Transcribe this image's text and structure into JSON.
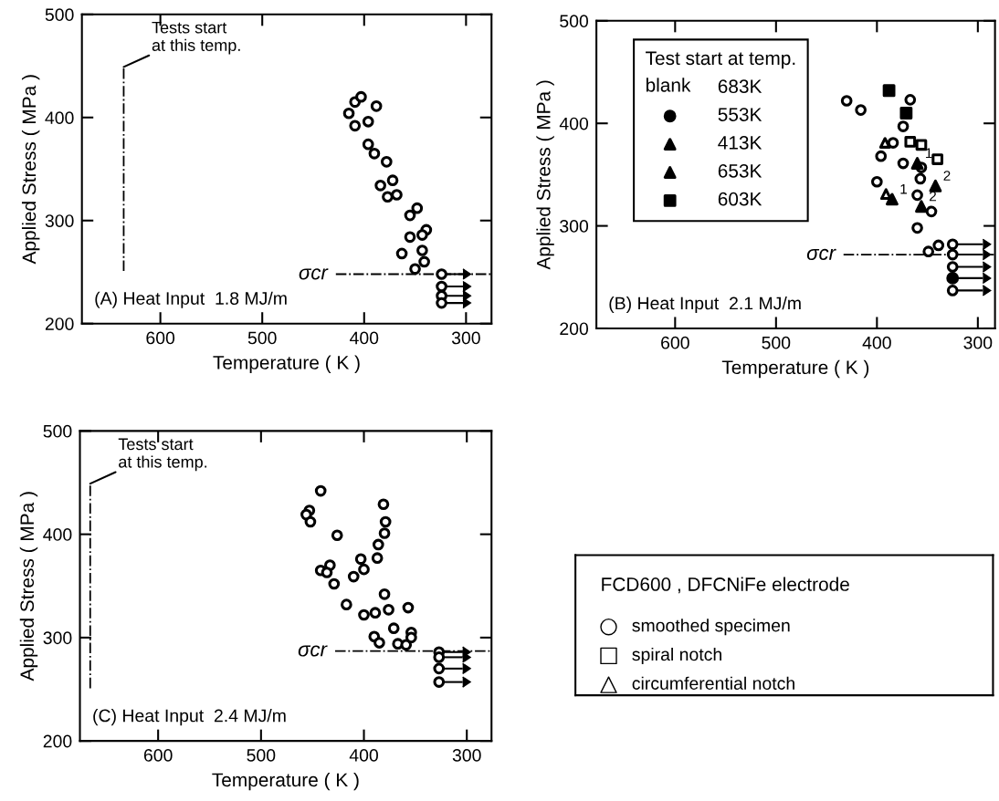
{
  "chart_data": [
    {
      "type": "scatter",
      "xlabel": "Temperature ( K )",
      "ylabel": "Applied Stress ( MPa )",
      "xlim": [
        677,
        275
      ],
      "xticks": [
        600,
        500,
        400,
        300
      ],
      "ylim": [
        200,
        500
      ],
      "yticks": [
        200,
        300,
        400,
        500
      ],
      "grid": false,
      "legend": false,
      "series": [
        {
          "color": "#000000",
          "marker": "circle-open",
          "x": [
            415,
            409,
            403,
            388,
            409,
            396,
            396,
            390,
            378,
            372,
            384,
            377,
            368,
            348,
            355,
            339,
            343,
            355,
            343,
            363,
            341,
            350,
            324,
            324,
            324,
            324
          ],
          "values": [
            404,
            415,
            420,
            411,
            392,
            396,
            374,
            365,
            357,
            339,
            334,
            323,
            325,
            312,
            305,
            291,
            286,
            284,
            271,
            268,
            260,
            253,
            248,
            236,
            227,
            220
          ],
          "xerrors": [
            null,
            null,
            null,
            null,
            null,
            null,
            null,
            null,
            null,
            null,
            null,
            null,
            null,
            null,
            null,
            null,
            null,
            null,
            null,
            null,
            null,
            null,
            [
              303,
              324
            ],
            [
              303,
              324
            ],
            [
              303,
              324
            ],
            [
              303,
              324
            ]
          ]
        }
      ],
      "ref_lines": [
        {
          "axis": "x",
          "value": 636,
          "line_style": "dashdot"
        },
        {
          "axis": "y",
          "value": 248,
          "label": "σcr",
          "line_style": "dashdot"
        }
      ],
      "annotations": [
        "(A) Heat Input  1.8 MJ/m",
        {
          "text": "Tests start\nat this temp.",
          "x": 636,
          "y": 449
        }
      ]
    },
    {
      "type": "scatter",
      "xlabel": "Temperature ( K )",
      "ylabel": "Applied Stress ( MPa )",
      "xlim": [
        678,
        283
      ],
      "xticks": [
        600,
        500,
        400,
        300
      ],
      "ylim": [
        200,
        500
      ],
      "yticks": [
        200,
        300,
        400,
        500
      ],
      "grid": false,
      "legend": "top left",
      "legend_title": "Test start at temp.",
      "series": [
        {
          "color": "#000000",
          "marker": "circle-open",
          "x": [
            430,
            416,
            367,
            374,
            384,
            396,
            374,
            356,
            357,
            400,
            360,
            346,
            360,
            349,
            339,
            325,
            325,
            325,
            325
          ],
          "values": [
            422,
            413,
            423,
            397,
            381,
            368,
            361,
            357,
            346,
            343,
            330,
            314,
            298,
            275,
            281,
            282,
            272,
            260,
            237
          ],
          "xerrors": [
            null,
            null,
            null,
            null,
            null,
            null,
            null,
            null,
            null,
            null,
            null,
            null,
            null,
            null,
            null,
            [
              295,
              325
            ],
            [
              295,
              325
            ],
            [
              295,
              325
            ],
            [
              295,
              325
            ]
          ]
        },
        {
          "color": "#000000",
          "marker": "square-open",
          "x": [
            367,
            356,
            340
          ],
          "values": [
            382,
            379,
            365
          ]
        },
        {
          "color": "#000000",
          "marker": "triangle-open",
          "x": [
            392,
            391
          ],
          "values": [
            381,
            331
          ]
        },
        {
          "name": "553K",
          "color": "#000000",
          "marker": "circle",
          "x": [
            325
          ],
          "values": [
            249
          ],
          "xerrors": [
            [
              295,
              325
            ]
          ]
        },
        {
          "name": "413K",
          "color": "#000000",
          "marker": "triangle",
          "x": [
            360,
            385
          ],
          "values": [
            361,
            326
          ]
        },
        {
          "name": "653K",
          "color": "#000000",
          "marker": "triangle",
          "x": [
            342,
            356
          ],
          "values": [
            339,
            319
          ]
        },
        {
          "name": "603K",
          "color": "#000000",
          "marker": "square",
          "x": [
            388,
            371
          ],
          "values": [
            432,
            410
          ]
        }
      ],
      "ref_lines": [
        {
          "axis": "y",
          "value": 272,
          "label": "σcr",
          "line_style": "dashdot"
        }
      ],
      "annotations": [
        "(B) Heat Input  2.1 MJ/m",
        "blank",
        "683K",
        {
          "text": "1",
          "x": 360,
          "y": 361
        },
        {
          "text": "1",
          "x": 385,
          "y": 326
        },
        {
          "text": "2",
          "x": 342,
          "y": 339
        },
        {
          "text": "2",
          "x": 356,
          "y": 319
        }
      ]
    },
    {
      "type": "scatter",
      "xlabel": "Temperature ( K )",
      "ylabel": "Applied Stress ( MPa )",
      "xlim": [
        676,
        276
      ],
      "xticks": [
        600,
        500,
        400,
        300
      ],
      "ylim": [
        200,
        500
      ],
      "yticks": [
        200,
        300,
        400,
        500
      ],
      "grid": false,
      "legend": false,
      "series": [
        {
          "color": "#000000",
          "marker": "circle-open",
          "x": [
            442,
            453,
            456,
            452,
            426,
            381,
            379,
            380,
            386,
            387,
            403,
            400,
            410,
            433,
            442,
            436,
            429,
            380,
            417,
            400,
            389,
            376,
            357,
            371,
            390,
            385,
            367,
            359,
            354,
            354,
            327,
            327,
            327,
            327
          ],
          "values": [
            442,
            423,
            419,
            412,
            399,
            429,
            412,
            401,
            390,
            377,
            376,
            366,
            359,
            370,
            365,
            363,
            352,
            342,
            332,
            322,
            324,
            327,
            329,
            309,
            301,
            295,
            294,
            293,
            305,
            300,
            286,
            281,
            270,
            257
          ],
          "xerrors": [
            null,
            null,
            null,
            null,
            null,
            null,
            null,
            null,
            null,
            null,
            null,
            null,
            null,
            null,
            null,
            null,
            null,
            null,
            null,
            null,
            null,
            null,
            null,
            null,
            null,
            null,
            null,
            null,
            null,
            null,
            [
              304,
              327
            ],
            [
              304,
              327
            ],
            [
              304,
              327
            ],
            [
              304,
              327
            ]
          ]
        }
      ],
      "ref_lines": [
        {
          "axis": "x",
          "value": 666,
          "line_style": "dashdot"
        },
        {
          "axis": "y",
          "value": 287,
          "label": "σcr",
          "line_style": "dashdot"
        }
      ],
      "annotations": [
        "(C) Heat Input  2.4 MJ/m",
        {
          "text": "Tests start\nat this temp.",
          "x": 666,
          "y": 449
        }
      ]
    },
    {
      "type": "other",
      "title": "FCD600 , DFCNiFe electrode",
      "legend": "top left",
      "series": [
        {
          "name": "smoothed specimen",
          "color": "#000000",
          "marker": "circle-open"
        },
        {
          "name": "spiral notch",
          "color": "#000000",
          "marker": "square-open"
        },
        {
          "name": "circumferential notch",
          "color": "#000000",
          "marker": "triangle-open"
        }
      ]
    }
  ]
}
